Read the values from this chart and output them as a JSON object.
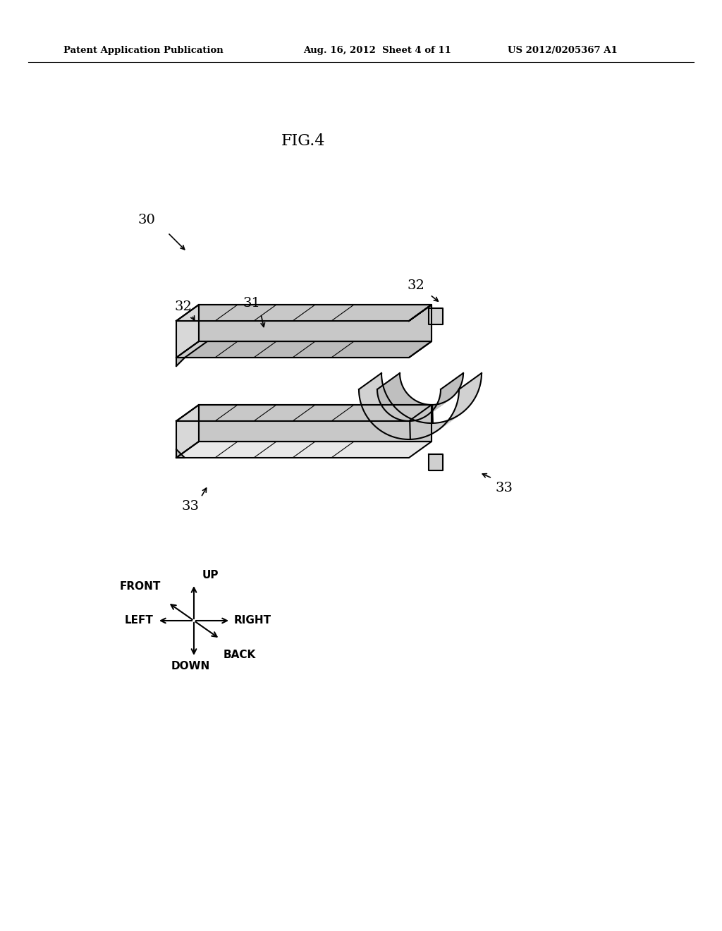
{
  "bg_color": "#ffffff",
  "header_left": "Patent Application Publication",
  "header_center": "Aug. 16, 2012  Sheet 4 of 11",
  "header_right": "US 2012/0205367 A1",
  "fig_label": "FIG.4",
  "part_label_30": "30",
  "part_label_31": "31",
  "part_label_32_left": "32",
  "part_label_32_right": "32",
  "part_label_33_left": "33",
  "part_label_33_right": "33",
  "directions": [
    "FRONT",
    "UP",
    "RIGHT",
    "DOWN",
    "BACK",
    "LEFT"
  ],
  "line_color": "#000000",
  "text_color": "#000000"
}
